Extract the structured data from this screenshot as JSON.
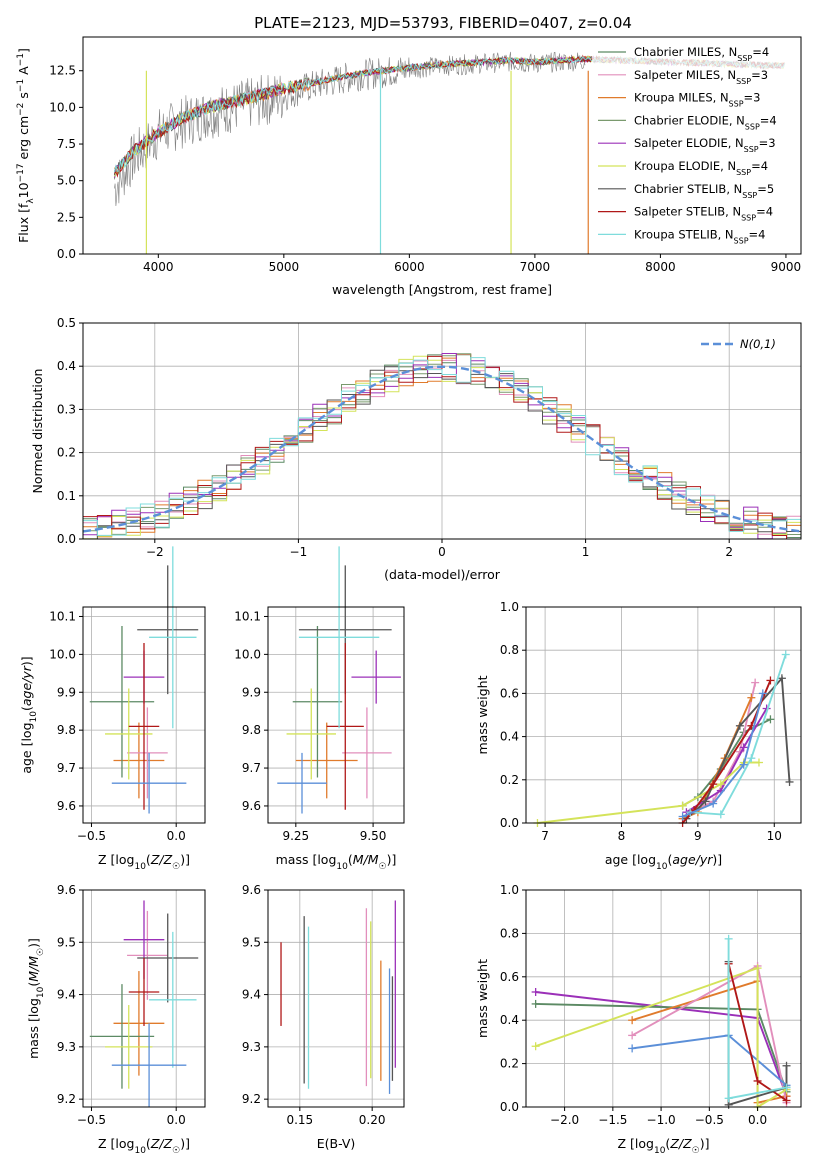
{
  "figure": {
    "title": "PLATE=2123, MJD=53793, FIBERID=0407, z=0.04"
  },
  "models": [
    {
      "name": "Chabrier MILES, N$_{SSP}$=4",
      "label_main": "Chabrier MILES, N",
      "label_sub": "SSP",
      "label_tail": "=4",
      "color": "#5c8a64"
    },
    {
      "name": "Salpeter MILES",
      "label_main": "Salpeter MILES, N",
      "label_sub": "SSP",
      "label_tail": "=3",
      "color": "#e28fbc"
    },
    {
      "name": "Kroupa MILES",
      "label_main": "Kroupa MILES, N",
      "label_sub": "SSP",
      "label_tail": "=3",
      "color": "#e07b2c"
    },
    {
      "name": "Chabrier ELODIE",
      "label_main": "Chabrier ELODIE, N",
      "label_sub": "SSP",
      "label_tail": "=4",
      "color": "#7a9a6e"
    },
    {
      "name": "Salpeter ELODIE",
      "label_main": "Salpeter ELODIE, N",
      "label_sub": "SSP",
      "label_tail": "=3",
      "color": "#9b30b8"
    },
    {
      "name": "Kroupa ELODIE",
      "label_main": "Kroupa ELODIE, N",
      "label_sub": "SSP",
      "label_tail": "=4",
      "color": "#d4e35a"
    },
    {
      "name": "Chabrier STELIB",
      "label_main": "Chabrier STELIB, N",
      "label_sub": "SSP",
      "label_tail": "=5",
      "color": "#555555"
    },
    {
      "name": "Salpeter STELIB",
      "label_main": "Salpeter STELIB, N",
      "label_sub": "SSP",
      "label_tail": "=4",
      "color": "#b01818"
    },
    {
      "name": "Kroupa STELIB",
      "label_main": "Kroupa STELIB, N",
      "label_sub": "SSP",
      "label_tail": "=4",
      "color": "#7fdcdc"
    }
  ],
  "chart_data": [
    {
      "id": "spectrum",
      "type": "line",
      "xlabel": "wavelength [Angstrom, rest frame]",
      "ylabel_pre": "Flux [f",
      "ylabel_sub": "λ",
      "ylabel_mid": "10",
      "ylabel_sup": "−17",
      "ylabel_post": " erg cm",
      "ylabel_sup2": "−2",
      "ylabel_post2": " s",
      "ylabel_sup3": "−1",
      "ylabel_post3": " A",
      "ylabel_sup4": "−1",
      "ylabel_end": "]",
      "xlim": [
        3400,
        9120
      ],
      "ylim": [
        0,
        14.8
      ],
      "xticks": [
        4000,
        5000,
        6000,
        7000,
        8000,
        9000
      ],
      "xtick_labels": [
        "4000",
        "5000",
        "6000",
        "7000",
        "8000",
        "9000"
      ],
      "yticks": [
        0,
        2.5,
        5,
        7.5,
        10,
        12.5
      ],
      "ytick_labels": [
        "0.0",
        "2.5",
        "5.0",
        "7.5",
        "10.0",
        "12.5"
      ],
      "data_x": [
        3650,
        3800,
        4000,
        4200,
        4400,
        4600,
        4800,
        5000,
        5200,
        5400,
        5600,
        5800,
        6000,
        6200,
        6400,
        6600,
        6800,
        7000,
        7200,
        7400
      ],
      "data_y": [
        4.5,
        6.5,
        8.2,
        9.0,
        9.6,
        10.0,
        10.4,
        10.8,
        11.4,
        11.8,
        12.2,
        12.4,
        12.6,
        12.8,
        12.9,
        13.0,
        13.1,
        13.0,
        13.1,
        13.2
      ],
      "model_y": [
        5.5,
        7.0,
        8.3,
        9.3,
        10.0,
        10.4,
        10.8,
        11.3,
        11.6,
        12.0,
        12.3,
        12.5,
        12.7,
        12.9,
        13.0,
        13.1,
        13.2,
        13.1,
        13.2,
        13.3
      ],
      "model_xmax": 9000,
      "legend_position": "upper right"
    },
    {
      "id": "residual_hist",
      "type": "histogram",
      "xlabel": "(data-model)/error",
      "ylabel": "Normed distribution",
      "xlim": [
        -2.5,
        2.5
      ],
      "ylim": [
        0,
        0.5
      ],
      "xticks": [
        -2,
        -1,
        0,
        1,
        2
      ],
      "xtick_labels": [
        "−2",
        "−1",
        "0",
        "1",
        "2"
      ],
      "yticks": [
        0,
        0.1,
        0.2,
        0.3,
        0.4,
        0.5
      ],
      "ytick_labels": [
        "0.0",
        "0.1",
        "0.2",
        "0.3",
        "0.4",
        "0.5"
      ],
      "reference_label": "N(0,1)",
      "reference_color": "#5b8fd8",
      "legend_position": "upper right"
    },
    {
      "id": "age_vs_Z",
      "type": "errorbar",
      "xlabel_pre": "Z [log",
      "xlabel_sub": "10",
      "xlabel_post": "(Z/Z",
      "xlabel_sub2": "☉",
      "xlabel_end": ")]",
      "ylabel": "age  [log10(age/yr)]",
      "xlim": [
        -0.55,
        0.17
      ],
      "ylim": [
        9.555,
        10.125
      ],
      "xticks": [
        -0.5,
        0.0
      ],
      "xtick_labels": [
        "−0.5",
        "0.0"
      ],
      "yticks": [
        9.6,
        9.7,
        9.8,
        9.9,
        10.0,
        10.1
      ],
      "ytick_labels": [
        "9.6",
        "9.7",
        "9.8",
        "9.9",
        "10.0",
        "10.1"
      ],
      "points": [
        {
          "x": -0.22,
          "xerr": 0.15,
          "y": 9.72,
          "yerr": 0.1
        },
        {
          "x": -0.17,
          "xerr": 0.12,
          "y": 9.74,
          "yerr": 0.12
        },
        {
          "x": -0.32,
          "xerr": 0.19,
          "y": 9.875,
          "yerr": 0.2
        },
        {
          "x": -0.19,
          "xerr": 0.12,
          "y": 9.94,
          "yerr": 0.07
        },
        {
          "x": -0.28,
          "xerr": 0.14,
          "y": 9.79,
          "yerr": 0.12
        },
        {
          "x": -0.05,
          "xerr": 0.18,
          "y": 10.065,
          "yerr": 0.17
        },
        {
          "x": -0.19,
          "xerr": 0.09,
          "y": 9.81,
          "yerr": 0.22
        },
        {
          "x": -0.02,
          "xerr": 0.14,
          "y": 10.045,
          "yerr": 0.24
        },
        {
          "x": -0.16,
          "xerr": 0.22,
          "y": 9.66,
          "yerr": 0.08
        }
      ],
      "colors": [
        "#e07b2c",
        "#e28fbc",
        "#5c8a64",
        "#9b30b8",
        "#d4e35a",
        "#555555",
        "#b01818",
        "#7fdcdc",
        "#5b8fd8"
      ]
    },
    {
      "id": "age_vs_mass",
      "type": "errorbar",
      "xlabel_pre": "mass [log",
      "xlabel_sub": "10",
      "xlabel_post": "(M/M",
      "xlabel_sub2": "☉",
      "xlabel_end": ")]",
      "xlim": [
        9.16,
        9.6
      ],
      "ylim": [
        9.555,
        10.125
      ],
      "xticks": [
        9.25,
        9.5
      ],
      "xtick_labels": [
        "9.25",
        "9.50"
      ],
      "yticks": [
        9.6,
        9.7,
        9.8,
        9.9,
        10.0,
        10.1
      ],
      "ytick_labels": [
        "9.6",
        "9.7",
        "9.8",
        "9.9",
        "10.0",
        "10.1"
      ],
      "points": [
        {
          "x": 9.35,
          "xerr": 0.1,
          "y": 9.72,
          "yerr": 0.1
        },
        {
          "x": 9.48,
          "xerr": 0.08,
          "y": 9.74,
          "yerr": 0.12
        },
        {
          "x": 9.32,
          "xerr": 0.08,
          "y": 9.875,
          "yerr": 0.2
        },
        {
          "x": 9.51,
          "xerr": 0.08,
          "y": 9.94,
          "yerr": 0.07
        },
        {
          "x": 9.3,
          "xerr": 0.08,
          "y": 9.79,
          "yerr": 0.12
        },
        {
          "x": 9.41,
          "xerr": 0.15,
          "y": 10.065,
          "yerr": 0.17
        },
        {
          "x": 9.41,
          "xerr": 0.06,
          "y": 9.81,
          "yerr": 0.22
        },
        {
          "x": 9.39,
          "xerr": 0.13,
          "y": 10.045,
          "yerr": 0.24
        },
        {
          "x": 9.27,
          "xerr": 0.08,
          "y": 9.66,
          "yerr": 0.08
        }
      ],
      "colors": [
        "#e07b2c",
        "#e28fbc",
        "#5c8a64",
        "#9b30b8",
        "#d4e35a",
        "#555555",
        "#b01818",
        "#7fdcdc",
        "#5b8fd8"
      ]
    },
    {
      "id": "weight_vs_age",
      "type": "line",
      "xlabel": "age  [log10(age/yr)]",
      "ylabel": "mass weight",
      "xlim": [
        6.75,
        10.35
      ],
      "ylim": [
        0,
        1.0
      ],
      "xticks": [
        7,
        8,
        9,
        10
      ],
      "xtick_labels": [
        "7",
        "8",
        "9",
        "10"
      ],
      "yticks": [
        0,
        0.2,
        0.4,
        0.6,
        0.8,
        1.0
      ],
      "ytick_labels": [
        "0.0",
        "0.2",
        "0.4",
        "0.6",
        "0.8",
        "1.0"
      ],
      "series": [
        {
          "color": "#5c8a64",
          "x": [
            8.8,
            9.0,
            9.3,
            9.6,
            9.95
          ],
          "y": [
            0.08,
            0.12,
            0.25,
            0.42,
            0.48
          ]
        },
        {
          "color": "#e28fbc",
          "x": [
            8.9,
            9.2,
            9.55,
            9.75
          ],
          "y": [
            0.05,
            0.1,
            0.33,
            0.65
          ]
        },
        {
          "color": "#e07b2c",
          "x": [
            8.8,
            9.0,
            9.35,
            9.7
          ],
          "y": [
            0.02,
            0.05,
            0.3,
            0.58
          ]
        },
        {
          "color": "#9b30b8",
          "x": [
            8.85,
            9.3,
            9.6,
            9.9
          ],
          "y": [
            0.05,
            0.15,
            0.35,
            0.53
          ]
        },
        {
          "color": "#d4e35a",
          "x": [
            6.9,
            8.8,
            9.3,
            9.6,
            9.8
          ],
          "y": [
            0.0,
            0.08,
            0.18,
            0.28,
            0.28
          ]
        },
        {
          "color": "#555555",
          "x": [
            8.85,
            9.1,
            9.55,
            10.1,
            10.2
          ],
          "y": [
            0.02,
            0.1,
            0.45,
            0.67,
            0.19
          ]
        },
        {
          "color": "#b01818",
          "x": [
            8.8,
            8.95,
            9.2,
            9.7,
            9.95
          ],
          "y": [
            0.0,
            0.06,
            0.18,
            0.45,
            0.66
          ]
        },
        {
          "color": "#7fdcdc",
          "x": [
            8.9,
            9.3,
            9.7,
            10.15
          ],
          "y": [
            0.05,
            0.04,
            0.3,
            0.78
          ]
        },
        {
          "color": "#5b8fd8",
          "x": [
            8.8,
            9.2,
            9.6,
            9.85
          ],
          "y": [
            0.03,
            0.09,
            0.27,
            0.6
          ]
        }
      ]
    },
    {
      "id": "mass_vs_Z",
      "type": "errorbar",
      "xlabel_pre": "Z [log",
      "xlabel_sub": "10",
      "xlabel_post": "(Z/Z",
      "xlabel_sub2": "☉",
      "xlabel_end": ")]",
      "ylabel": "mass [log10(M/M☉)]",
      "xlim": [
        -0.55,
        0.17
      ],
      "ylim": [
        9.185,
        9.6
      ],
      "xticks": [
        -0.5,
        0.0
      ],
      "xtick_labels": [
        "−0.5",
        "0.0"
      ],
      "yticks": [
        9.2,
        9.3,
        9.4,
        9.5,
        9.6
      ],
      "ytick_labels": [
        "9.2",
        "9.3",
        "9.4",
        "9.5",
        "9.6"
      ],
      "points": [
        {
          "x": -0.22,
          "xerr": 0.15,
          "y": 9.345,
          "yerr": 0.1
        },
        {
          "x": -0.17,
          "xerr": 0.12,
          "y": 9.475,
          "yerr": 0.085
        },
        {
          "x": -0.32,
          "xerr": 0.19,
          "y": 9.32,
          "yerr": 0.1
        },
        {
          "x": -0.19,
          "xerr": 0.12,
          "y": 9.505,
          "yerr": 0.075
        },
        {
          "x": -0.28,
          "xerr": 0.14,
          "y": 9.3,
          "yerr": 0.08
        },
        {
          "x": -0.05,
          "xerr": 0.18,
          "y": 9.47,
          "yerr": 0.085
        },
        {
          "x": -0.19,
          "xerr": 0.09,
          "y": 9.405,
          "yerr": 0.065
        },
        {
          "x": -0.02,
          "xerr": 0.14,
          "y": 9.39,
          "yerr": 0.13
        },
        {
          "x": -0.16,
          "xerr": 0.22,
          "y": 9.265,
          "yerr": 0.08
        }
      ],
      "colors": [
        "#e07b2c",
        "#e28fbc",
        "#5c8a64",
        "#9b30b8",
        "#d4e35a",
        "#555555",
        "#b01818",
        "#7fdcdc",
        "#5b8fd8"
      ]
    },
    {
      "id": "mass_vs_ebv",
      "type": "errorbar",
      "xlabel": "E(B-V)",
      "xlim": [
        0.128,
        0.222
      ],
      "ylim": [
        9.185,
        9.6
      ],
      "xticks": [
        0.15,
        0.2
      ],
      "xtick_labels": [
        "0.15",
        "0.20"
      ],
      "yticks": [
        9.2,
        9.3,
        9.4,
        9.5,
        9.6
      ],
      "ytick_labels": [
        "9.2",
        "9.3",
        "9.4",
        "9.5",
        "9.6"
      ],
      "points": [
        {
          "x": 0.137,
          "y": 9.42,
          "yerr": 0.08
        },
        {
          "x": 0.153,
          "y": 9.39,
          "yerr": 0.16
        },
        {
          "x": 0.156,
          "y": 9.375,
          "yerr": 0.155
        },
        {
          "x": 0.196,
          "y": 9.395,
          "yerr": 0.17
        },
        {
          "x": 0.199,
          "y": 9.39,
          "yerr": 0.15
        },
        {
          "x": 0.206,
          "y": 9.35,
          "yerr": 0.115
        },
        {
          "x": 0.212,
          "y": 9.33,
          "yerr": 0.12
        },
        {
          "x": 0.214,
          "y": 9.335,
          "yerr": 0.1
        },
        {
          "x": 0.216,
          "y": 9.42,
          "yerr": 0.16
        }
      ],
      "colors": [
        "#b01818",
        "#555555",
        "#7fdcdc",
        "#e28fbc",
        "#d4e35a",
        "#e07b2c",
        "#5b8fd8",
        "#555555",
        "#9b30b8"
      ]
    },
    {
      "id": "weight_vs_Z",
      "type": "line",
      "xlabel_pre": "Z [log",
      "xlabel_sub": "10",
      "xlabel_post": "(Z/Z",
      "xlabel_sub2": "☉",
      "xlabel_end": ")]",
      "ylabel": "mass weight",
      "xlim": [
        -2.4,
        0.45
      ],
      "ylim": [
        0,
        1.0
      ],
      "xticks": [
        -2.0,
        -1.5,
        -1.0,
        -0.5,
        0.0
      ],
      "xtick_labels": [
        "−2.0",
        "−1.5",
        "−1.0",
        "−0.5",
        "0.0"
      ],
      "yticks": [
        0,
        0.2,
        0.4,
        0.6,
        0.8,
        1.0
      ],
      "ytick_labels": [
        "0.0",
        "0.2",
        "0.4",
        "0.6",
        "0.8",
        "1.0"
      ],
      "series": [
        {
          "color": "#9b30b8",
          "x": [
            -2.3,
            0.0,
            0.3
          ],
          "y": [
            0.53,
            0.41,
            0.05
          ]
        },
        {
          "color": "#5c8a64",
          "x": [
            -2.3,
            0.0,
            0.3
          ],
          "y": [
            0.475,
            0.45,
            0.07
          ]
        },
        {
          "color": "#e07b2c",
          "x": [
            -1.3,
            0.0,
            0.0,
            0.3
          ],
          "y": [
            0.4,
            0.58,
            0.02,
            0.05
          ]
        },
        {
          "color": "#e28fbc",
          "x": [
            -1.3,
            0.0,
            0.3
          ],
          "y": [
            0.33,
            0.65,
            0.02
          ]
        },
        {
          "color": "#5b8fd8",
          "x": [
            -1.3,
            -0.3,
            0.3
          ],
          "y": [
            0.27,
            0.33,
            0.1
          ]
        },
        {
          "color": "#d4e35a",
          "x": [
            -2.3,
            0.0,
            0.0,
            0.3
          ],
          "y": [
            0.28,
            0.64,
            0.0,
            0.08
          ]
        },
        {
          "color": "#b01818",
          "x": [
            -0.3,
            0.0,
            0.3
          ],
          "y": [
            0.66,
            0.12,
            0.03
          ]
        },
        {
          "color": "#555555",
          "x": [
            -0.3,
            -0.3,
            0.3,
            0.3
          ],
          "y": [
            0.67,
            0.01,
            0.09,
            0.19
          ]
        },
        {
          "color": "#7fdcdc",
          "x": [
            -0.3,
            -0.3,
            0.3
          ],
          "y": [
            0.775,
            0.04,
            0.09
          ]
        }
      ]
    }
  ]
}
